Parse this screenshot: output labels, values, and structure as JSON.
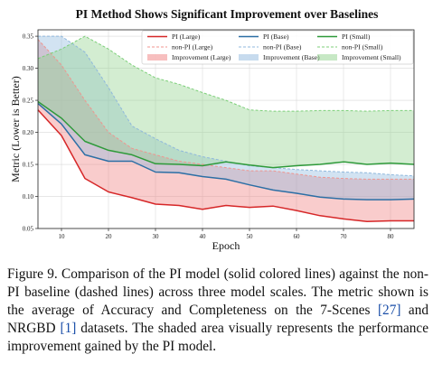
{
  "chart_data": {
    "type": "line",
    "title": "PI Method Shows Significant Improvement over Baselines",
    "xlabel": "Epoch",
    "ylabel": "Metric (Lower is Better)",
    "xlim": [
      5,
      85
    ],
    "ylim": [
      0.05,
      0.36
    ],
    "xticks": [
      10,
      20,
      30,
      40,
      50,
      60,
      70,
      80
    ],
    "yticks": [
      0.05,
      0.1,
      0.15,
      0.2,
      0.25,
      0.3,
      0.35
    ],
    "grid": true,
    "legend_position": "top",
    "x": [
      5,
      10,
      15,
      20,
      25,
      30,
      35,
      40,
      45,
      50,
      55,
      60,
      65,
      70,
      75,
      80,
      85
    ],
    "series": [
      {
        "name": "PI (Large)",
        "style": "solid",
        "color": "#d62728",
        "values": [
          0.235,
          0.195,
          0.128,
          0.107,
          0.098,
          0.088,
          0.086,
          0.08,
          0.086,
          0.083,
          0.085,
          0.078,
          0.07,
          0.065,
          0.061,
          0.062,
          0.062
        ]
      },
      {
        "name": "non-PI (Large)",
        "style": "dashed",
        "color": "#f0958f",
        "values": [
          0.345,
          0.305,
          0.25,
          0.2,
          0.175,
          0.165,
          0.155,
          0.15,
          0.145,
          0.14,
          0.14,
          0.135,
          0.13,
          0.128,
          0.127,
          0.127,
          0.127
        ]
      },
      {
        "name": "PI (Base)",
        "style": "solid",
        "color": "#2c6fa5",
        "values": [
          0.245,
          0.213,
          0.165,
          0.155,
          0.155,
          0.138,
          0.137,
          0.131,
          0.127,
          0.118,
          0.11,
          0.105,
          0.099,
          0.096,
          0.095,
          0.095,
          0.096
        ]
      },
      {
        "name": "non-PI (Base)",
        "style": "dashed",
        "color": "#90b8dc",
        "values": [
          0.35,
          0.35,
          0.325,
          0.27,
          0.21,
          0.19,
          0.172,
          0.162,
          0.155,
          0.148,
          0.145,
          0.142,
          0.14,
          0.138,
          0.137,
          0.134,
          0.132
        ]
      },
      {
        "name": "PI (Small)",
        "style": "solid",
        "color": "#2e9a3a",
        "values": [
          0.248,
          0.222,
          0.186,
          0.172,
          0.165,
          0.151,
          0.15,
          0.148,
          0.154,
          0.149,
          0.145,
          0.148,
          0.15,
          0.154,
          0.15,
          0.152,
          0.15
        ]
      },
      {
        "name": "non-PI (Small)",
        "style": "dashed",
        "color": "#7ccf79",
        "values": [
          0.315,
          0.33,
          0.35,
          0.33,
          0.305,
          0.285,
          0.275,
          0.262,
          0.25,
          0.235,
          0.233,
          0.233,
          0.234,
          0.234,
          0.233,
          0.234,
          0.234
        ]
      }
    ],
    "fills": [
      {
        "name": "Improvement (Large)",
        "between": [
          "PI (Large)",
          "non-PI (Large)"
        ],
        "color": "#f08080",
        "opacity": 0.4
      },
      {
        "name": "Improvement (Base)",
        "between": [
          "PI (Base)",
          "non-PI (Base)"
        ],
        "color": "#8fb8de",
        "opacity": 0.4
      },
      {
        "name": "Improvement (Small)",
        "between": [
          "PI (Small)",
          "non-PI (Small)"
        ],
        "color": "#90d28c",
        "opacity": 0.4
      }
    ],
    "legend": [
      [
        "PI (Large)",
        "PI (Base)",
        "PI (Small)"
      ],
      [
        "non-PI (Large)",
        "non-PI (Base)",
        "non-PI (Small)"
      ],
      [
        "Improvement (Large)",
        "Improvement (Base)",
        "Improvement (Small)"
      ]
    ]
  },
  "caption": {
    "text_before_ref1": "Figure 9. Comparison of the PI model (solid colored lines) against the non-PI baseline (dashed lines) across three model scales. The metric shown is the average of Accuracy and Completeness on the 7-Scenes ",
    "ref1": "[27]",
    "text_between": " and NRGBD ",
    "ref2": "[1]",
    "text_after": " datasets. The shaded area visually represents the performance improvement gained by the PI model."
  }
}
